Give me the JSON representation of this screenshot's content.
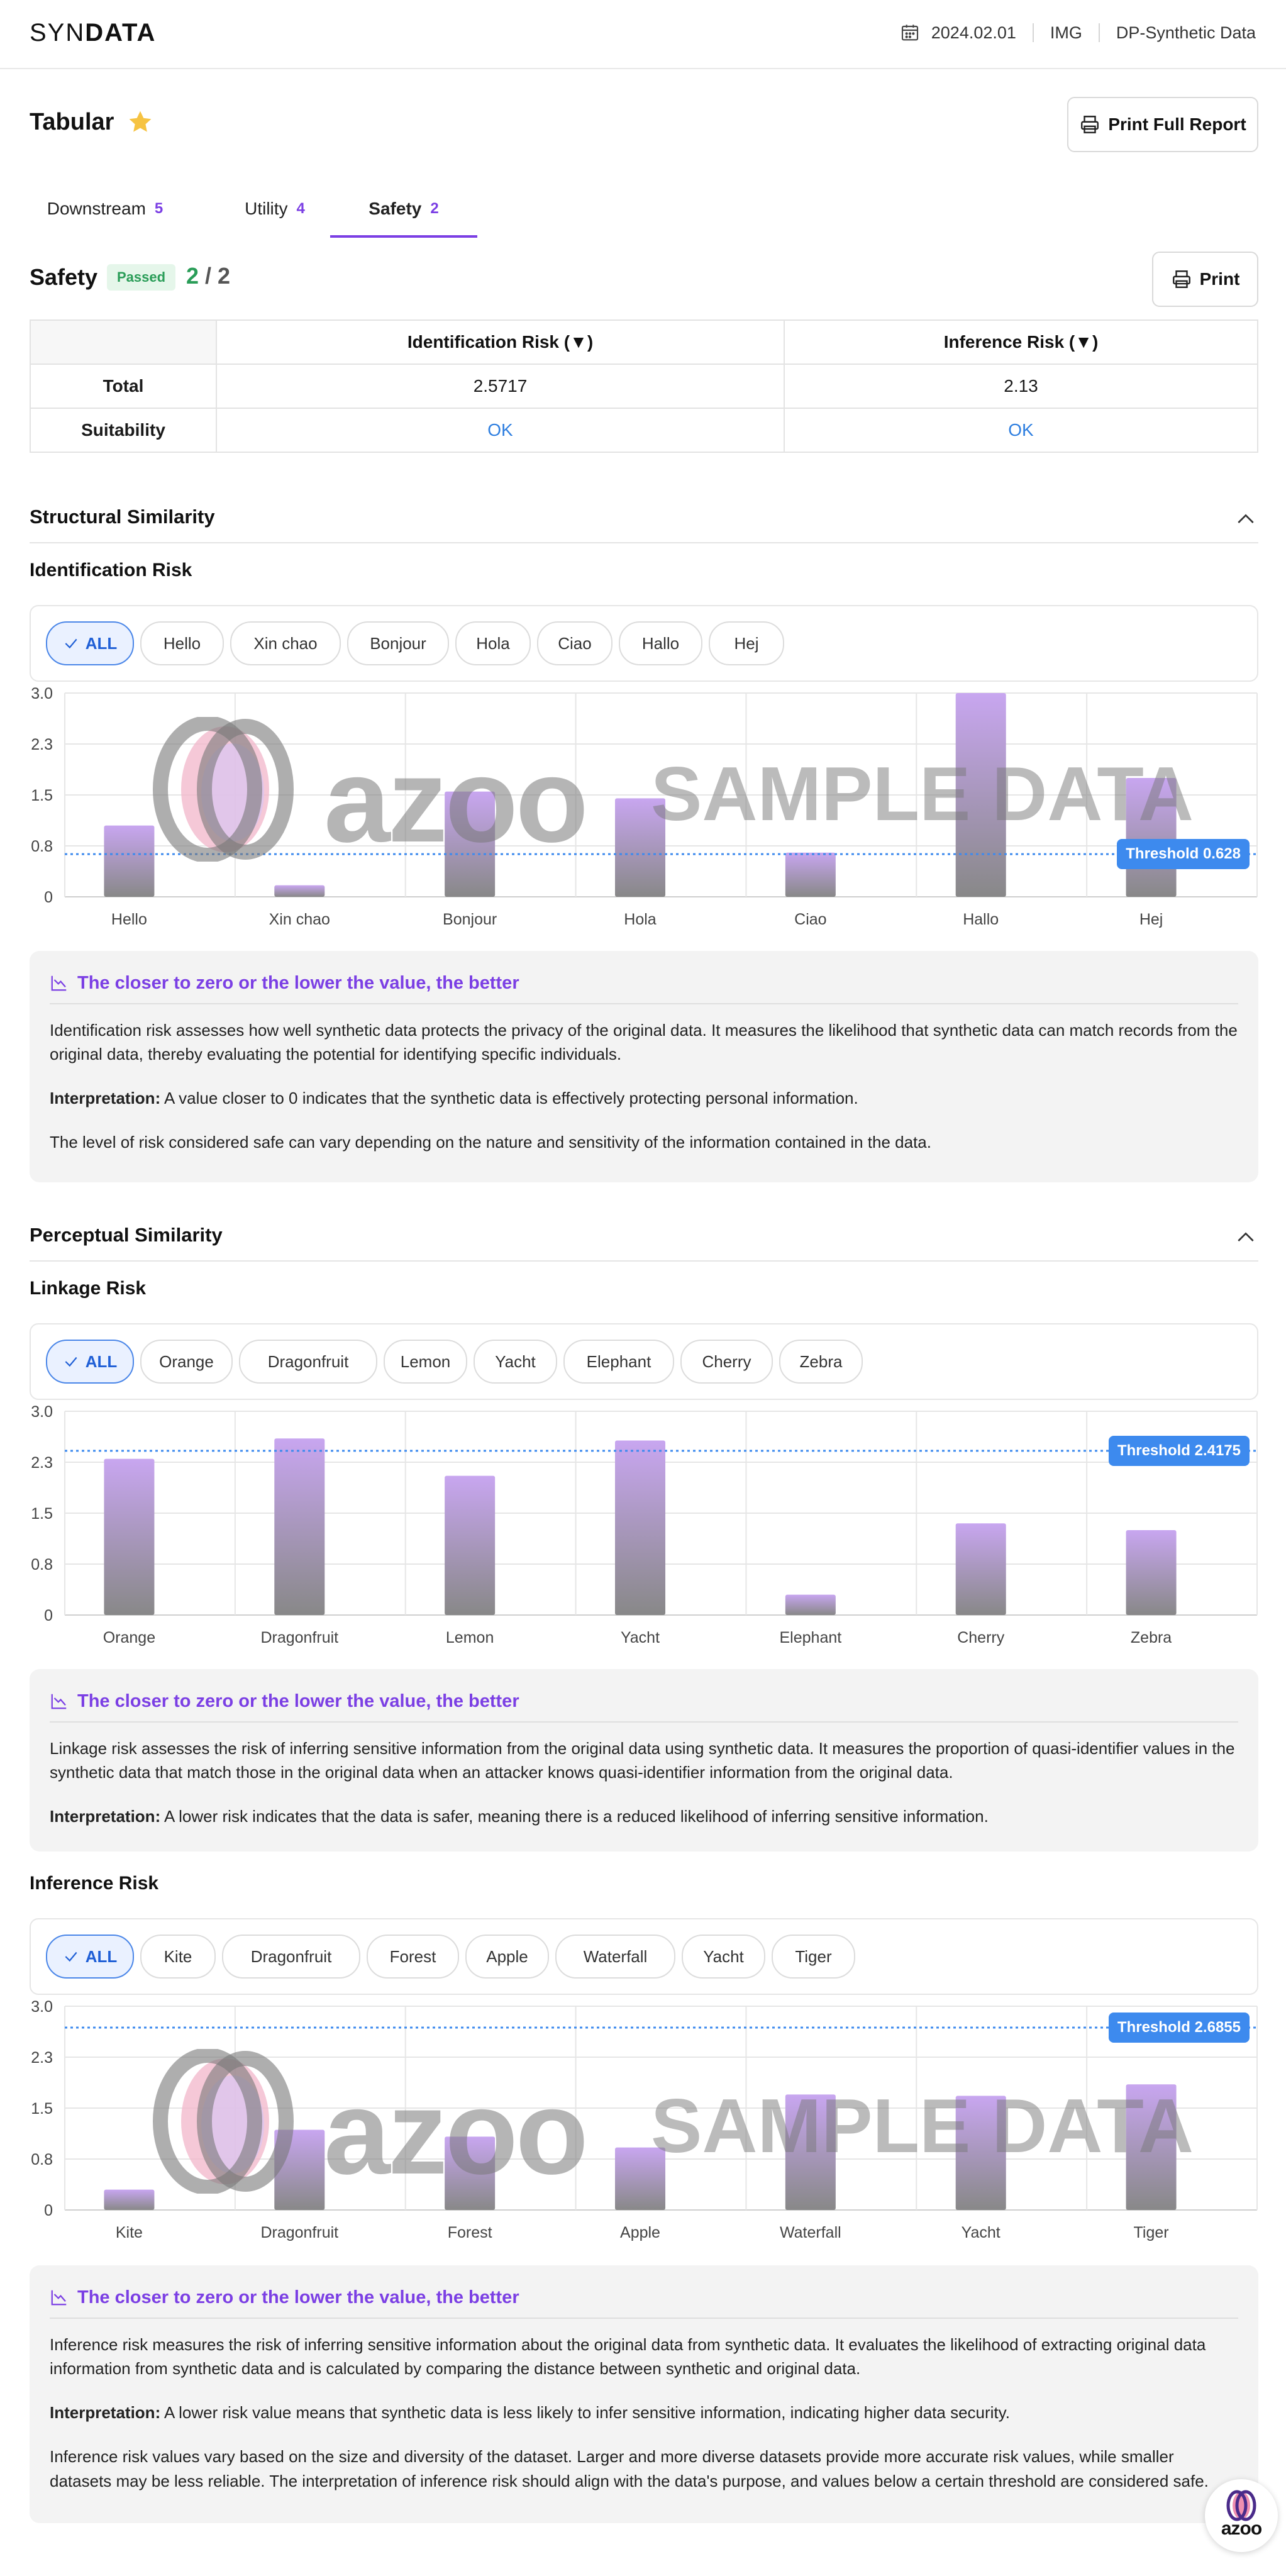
{
  "header": {
    "logo_light": "SYN",
    "logo_bold": "DATA",
    "date": "2024.02.01",
    "type": "IMG",
    "product": "DP-Synthetic Data"
  },
  "page": {
    "title": "Tabular",
    "print_full_label": "Print Full Report"
  },
  "tabs": [
    {
      "label": "Downstream",
      "count": "5"
    },
    {
      "label": "Utility",
      "count": "4"
    },
    {
      "label": "Safety",
      "count": "2"
    }
  ],
  "safety": {
    "title": "Safety",
    "badge": "Passed",
    "score": "2",
    "score_sep": " / ",
    "total": "2",
    "print_label": "Print"
  },
  "summary_table": {
    "headers": [
      "Identification Risk (▼)",
      "Inference Risk (▼)"
    ],
    "rows": [
      {
        "label": "Total",
        "values": [
          "2.5717",
          "2.13"
        ]
      },
      {
        "label": "Suitability",
        "values": [
          "OK",
          "OK"
        ]
      }
    ]
  },
  "sections": {
    "structural": "Structural Similarity",
    "perceptual": "Perceptual Similarity"
  },
  "watermark": {
    "brand": "azoo",
    "text": "SAMPLE DATA"
  },
  "float_logo": "azoo",
  "charts": {
    "identification": {
      "title": "Identification Risk",
      "filters": [
        "ALL",
        "Hello",
        "Xin chao",
        "Bonjour",
        "Hola",
        "Ciao",
        "Hallo",
        "Hej"
      ],
      "threshold_label": "Threshold 0.628",
      "info_head": "The closer to zero or the lower the value, the better",
      "info": [
        {
          "text": "Identification risk assesses how well synthetic data protects the privacy of the original data. It measures the likelihood that synthetic data can match records from the original data, thereby evaluating the potential for identifying specific individuals."
        },
        {
          "bold": "Interpretation:",
          "text": " A value closer to 0 indicates that the synthetic data is effectively protecting personal information."
        },
        {
          "text": "The level of risk considered safe can vary depending on the nature and sensitivity of the information contained in the data."
        }
      ]
    },
    "linkage": {
      "title": "Linkage Risk",
      "filters": [
        "ALL",
        "Orange",
        "Dragonfruit",
        "Lemon",
        "Yacht",
        "Elephant",
        "Cherry",
        "Zebra"
      ],
      "threshold_label": "Threshold 2.4175",
      "info_head": "The closer to zero or the lower the value, the better",
      "info": [
        {
          "text": "Linkage risk assesses the risk of inferring sensitive information from the original data using synthetic data. It measures the proportion of quasi-identifier values in the synthetic data that match those in the original data when an attacker knows quasi-identifier information from the original data."
        },
        {
          "bold": "Interpretation:",
          "text": " A lower risk indicates that the data is safer, meaning there is a reduced likelihood of inferring sensitive information."
        }
      ]
    },
    "inference": {
      "title": "Inference Risk",
      "filters": [
        "ALL",
        "Kite",
        "Dragonfruit",
        "Forest",
        "Apple",
        "Waterfall",
        "Yacht",
        "Tiger"
      ],
      "threshold_label": "Threshold 2.6855",
      "info_head": "The closer to zero or the lower the value, the better",
      "info": [
        {
          "text": "Inference risk measures the risk of inferring sensitive information about the original data from synthetic data. It evaluates the likelihood of extracting original data information from synthetic data and is calculated by comparing the distance between synthetic and original data."
        },
        {
          "bold": "Interpretation:",
          "text": " A lower risk value means that synthetic data is less likely to infer sensitive information, indicating higher data security."
        },
        {
          "text": "Inference risk values vary based on the size and diversity of the dataset. Larger and more diverse datasets provide more accurate risk values, while smaller datasets may be less reliable. The interpretation of inference risk should align with the data's purpose, and values below a certain threshold are considered safe."
        }
      ]
    }
  },
  "chart_data": [
    {
      "id": "identification",
      "type": "bar",
      "categories": [
        "Hello",
        "Xin chao",
        "Bonjour",
        "Hola",
        "Ciao",
        "Hallo",
        "Hej"
      ],
      "values": [
        1.05,
        0.17,
        1.55,
        1.45,
        0.65,
        3.0,
        1.75
      ],
      "y_ticks": [
        "0",
        "0.8",
        "1.5",
        "2.3",
        "3.0"
      ],
      "ylim": [
        0,
        3.0
      ],
      "threshold": 0.628,
      "grid": true,
      "bar_colors": {
        "top": "#c8a6f0",
        "bottom": "#888888"
      },
      "threshold_color": "#3d8aee"
    },
    {
      "id": "linkage",
      "type": "bar",
      "categories": [
        "Orange",
        "Dragonfruit",
        "Lemon",
        "Yacht",
        "Elephant",
        "Cherry",
        "Zebra"
      ],
      "values": [
        2.3,
        2.6,
        2.05,
        2.57,
        0.3,
        1.35,
        1.25
      ],
      "y_ticks": [
        "0",
        "0.8",
        "1.5",
        "2.3",
        "3.0"
      ],
      "ylim": [
        0,
        3.0
      ],
      "threshold": 2.4175,
      "grid": true,
      "bar_colors": {
        "top": "#c8a6f0",
        "bottom": "#888888"
      },
      "threshold_color": "#3d8aee"
    },
    {
      "id": "inference",
      "type": "bar",
      "categories": [
        "Kite",
        "Dragonfruit",
        "Forest",
        "Apple",
        "Waterfall",
        "Yacht",
        "Tiger"
      ],
      "values": [
        0.3,
        1.18,
        1.08,
        0.92,
        1.7,
        1.68,
        1.85
      ],
      "y_ticks": [
        "0",
        "0.8",
        "1.5",
        "2.3",
        "3.0"
      ],
      "ylim": [
        0,
        3.0
      ],
      "threshold": 2.6855,
      "grid": true,
      "bar_colors": {
        "top": "#c8a6f0",
        "bottom": "#888888"
      },
      "threshold_color": "#3d8aee"
    }
  ]
}
